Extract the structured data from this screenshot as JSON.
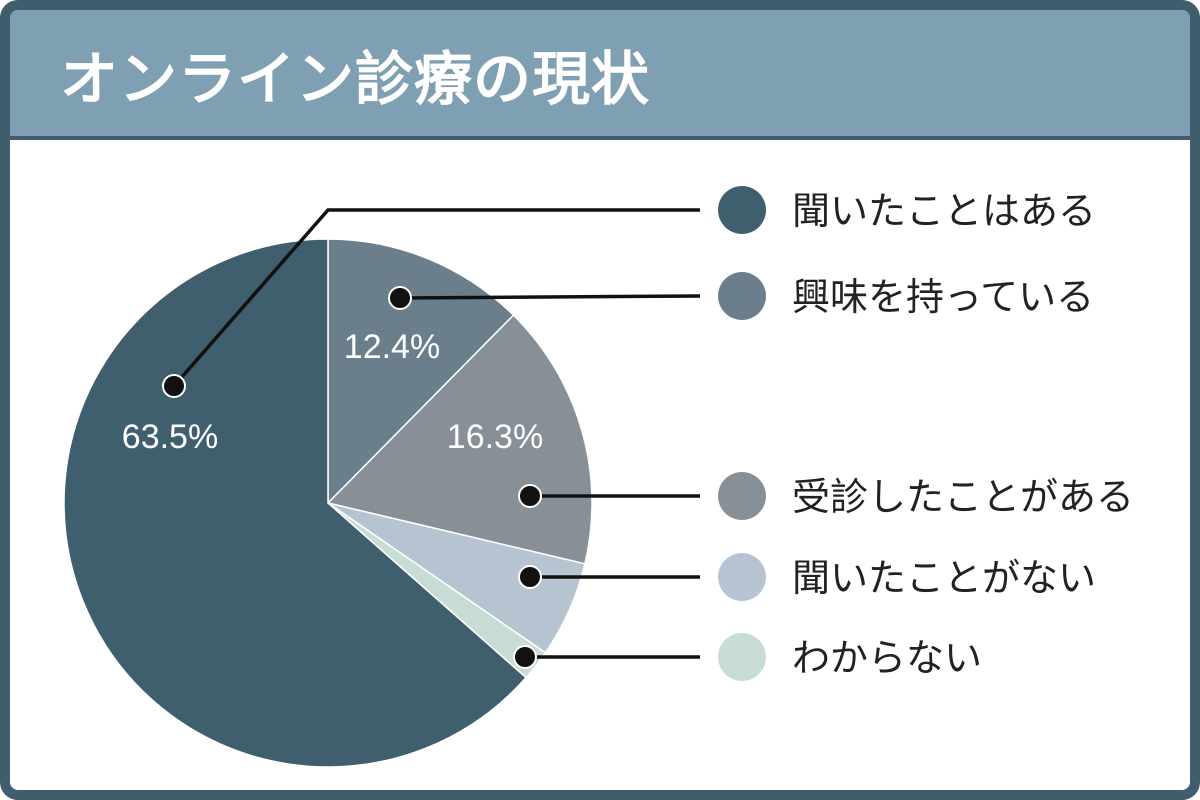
{
  "header": {
    "title": "オンライン診療の現状"
  },
  "chart_data": {
    "type": "pie",
    "slices": [
      {
        "label": "聞いたことはある",
        "value": 63.5,
        "value_label": "63.5%",
        "color": "#3f5f6f"
      },
      {
        "label": "興味を持っている",
        "value": 12.4,
        "value_label": "12.4%",
        "color": "#6a7f8b"
      },
      {
        "label": "受診したことがある",
        "value": 16.3,
        "value_label": "16.3%",
        "color": "#878f97"
      },
      {
        "label": "聞いたことがない",
        "value": 5.9,
        "value_label": "",
        "color": "#b6c4d2"
      },
      {
        "label": "わからない",
        "value": 1.9,
        "value_label": "",
        "color": "#c8dcd6"
      }
    ],
    "legend_placement": "right"
  }
}
